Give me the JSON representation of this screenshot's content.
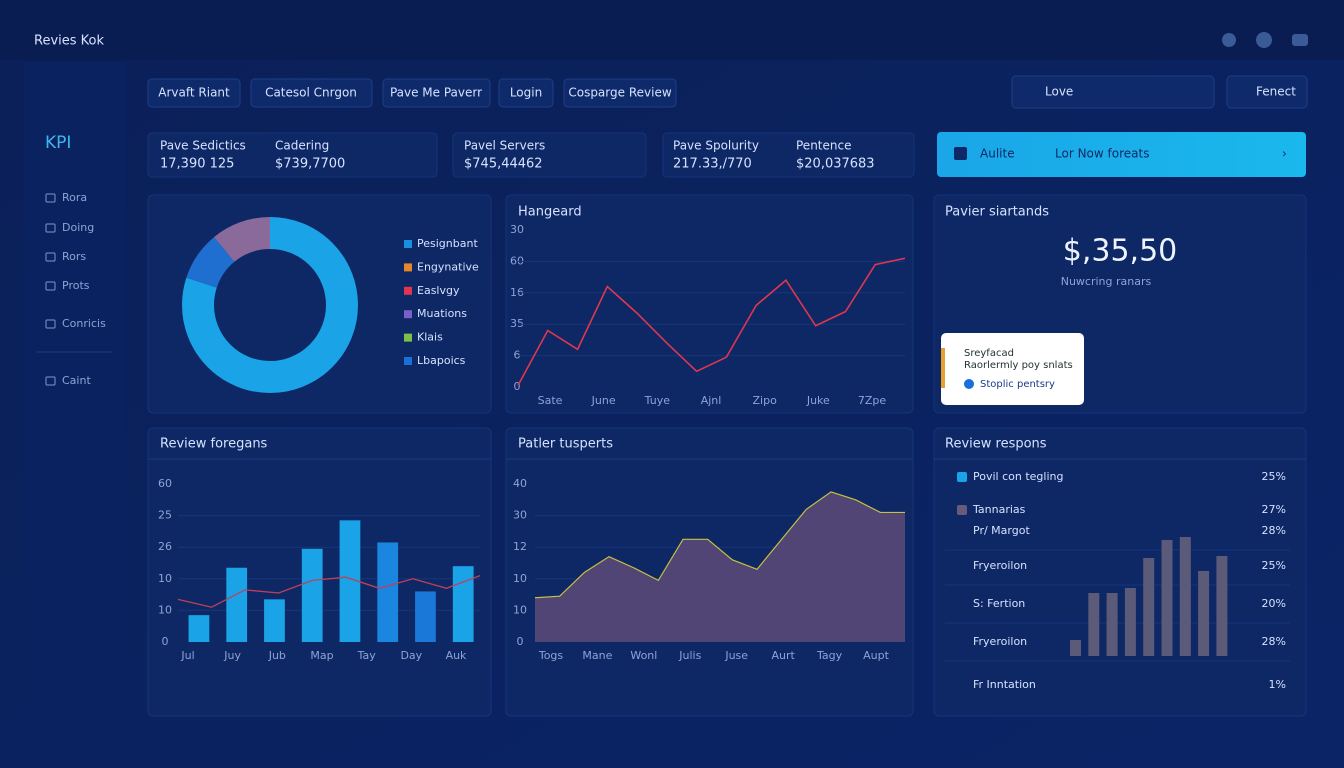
{
  "header": {
    "brand": "Revies Kok"
  },
  "sidebar": {
    "title": "KPI",
    "items": [
      "Rora",
      "Doing",
      "Rors",
      "Prots",
      "Conricis",
      "Caint"
    ]
  },
  "toolbar": {
    "buttons": [
      "Arvaft Riant",
      "Catesol Cnrgon",
      "Pave Me Paverr",
      "Login",
      "Cosparge Review"
    ],
    "right": [
      "Love",
      "Fenect"
    ]
  },
  "kpis": [
    {
      "label": "Pave Sedictics",
      "value": "17,390 125"
    },
    {
      "label": "Cadering",
      "value": "$739,7700"
    },
    {
      "label": "Pavel Servers",
      "value": "$745,44462"
    },
    {
      "label": "Pave Spolurity",
      "value": "217.33,/770"
    },
    {
      "label": "Pentence",
      "value": "$20,037683"
    }
  ],
  "banner": {
    "label": "Aulite",
    "text": "Lor Now foreats"
  },
  "donut": {
    "legend": [
      {
        "name": "Pesignbant",
        "color": "#1a8fe0"
      },
      {
        "name": "Engynative",
        "color": "#e8862a"
      },
      {
        "name": "Easlvgy",
        "color": "#e0364f"
      },
      {
        "name": "Muations",
        "color": "#7a5fc8"
      },
      {
        "name": "Klais",
        "color": "#7cc04a"
      },
      {
        "name": "Lbapoics",
        "color": "#1a6fd8"
      }
    ],
    "slices": [
      {
        "color": "#1aa3e6",
        "value": 80
      },
      {
        "color": "#1e6fd0",
        "value": 9
      },
      {
        "color": "#8a6a9a",
        "value": 11
      }
    ]
  },
  "line": {
    "title": "Hangeard",
    "y_labels": [
      "30",
      "60",
      "16",
      "35",
      "6",
      "0"
    ],
    "x_labels": [
      "Sate",
      "June",
      "Tuye",
      "Ajnl",
      "Zipo",
      "Juke",
      "7Zpe"
    ],
    "ylim": [
      0,
      100
    ],
    "values": [
      1,
      36,
      24,
      64,
      47,
      28,
      10,
      19,
      52,
      68,
      39,
      48,
      78,
      82
    ],
    "color": "#e0364f"
  },
  "bars": {
    "title": "Review foregans",
    "y_labels": [
      "60",
      "25",
      "26",
      "10",
      "10",
      "0"
    ],
    "x_labels": [
      "Jul",
      "Juy",
      "Jub",
      "Map",
      "Tay",
      "Day",
      "Auk"
    ],
    "ylim": [
      0,
      100
    ],
    "values": [
      17,
      47,
      27,
      59,
      77,
      63,
      32,
      48
    ],
    "colors": [
      "#1aa3e6",
      "#1aa3e6",
      "#1aa3e6",
      "#1aa3e6",
      "#1aa3e6",
      "#1a86e0",
      "#1a78d8",
      "#1aa3e6"
    ],
    "line_values": [
      27,
      22,
      33,
      31,
      39,
      41,
      34,
      40,
      34,
      42
    ],
    "line_color": "#c0405a"
  },
  "area": {
    "title": "Patler tusperts",
    "y_labels": [
      "40",
      "30",
      "12",
      "10",
      "10",
      "0"
    ],
    "x_labels": [
      "Togs",
      "Mane",
      "Wonl",
      "Julis",
      "Juse",
      "Aurt",
      "Tagy",
      "Aupt"
    ],
    "ylim": [
      0,
      100
    ],
    "values": [
      28,
      29,
      44,
      54,
      47,
      39,
      65,
      65,
      52,
      46,
      65,
      84,
      95,
      90,
      82,
      82
    ],
    "color": "#5e4a78",
    "line_color": "#c8c040"
  },
  "stat": {
    "title": "Pavier siartands",
    "value": "$,35,50",
    "caption": "Nuwcring ranars"
  },
  "popup": {
    "lines": [
      "Sreyfacad",
      "Raorlermly poy snlats"
    ],
    "action": "Stoplic pentsry"
  },
  "responses": {
    "title": "Review respons",
    "rows": [
      {
        "label": "Povil con tegling",
        "value": "25%"
      },
      {
        "label": "Tannarias",
        "value": "27%"
      },
      {
        "label": "Pr/ Margot",
        "value": "28%"
      },
      {
        "label": "Fryeroilon",
        "value": "25%"
      },
      {
        "label": "S: Fertion",
        "value": "20%"
      },
      {
        "label": "Fryeroilon",
        "value": "28%"
      },
      {
        "label": "Fr Inntation",
        "value": "1%"
      }
    ],
    "bars": [
      16,
      63,
      63,
      68,
      98,
      116,
      119,
      85,
      100
    ],
    "ylim": [
      0,
      130
    ],
    "color": "#5b5a78"
  }
}
